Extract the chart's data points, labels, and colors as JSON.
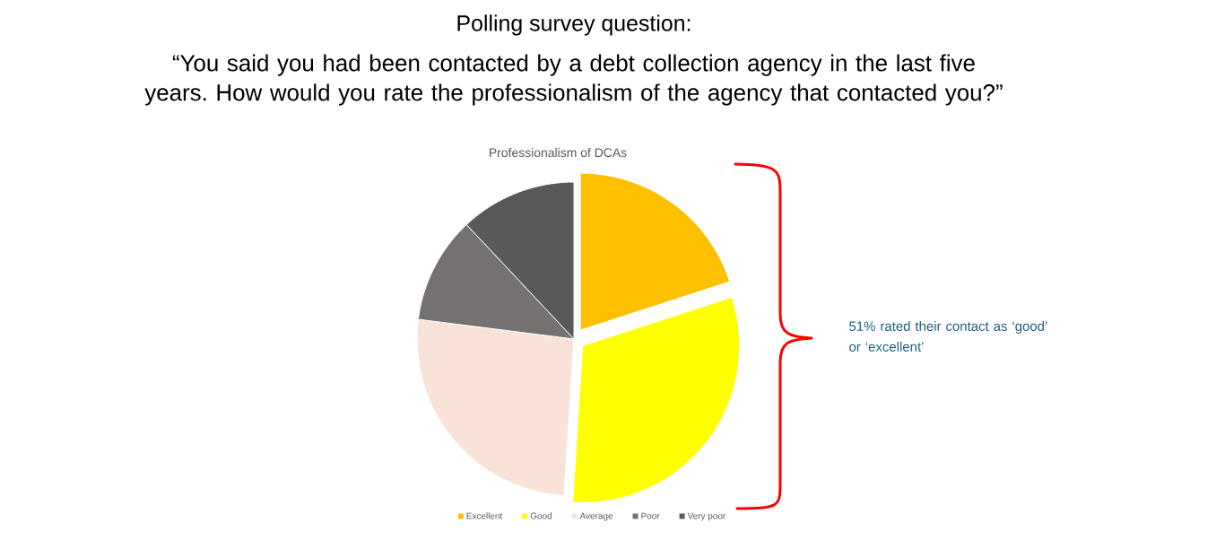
{
  "chart_data": {
    "type": "pie",
    "title": "Professionalism of DCAs",
    "categories": [
      "Excellent",
      "Good",
      "Average",
      "Poor",
      "Very poor"
    ],
    "values": [
      20,
      31,
      26,
      11,
      12
    ],
    "colors": [
      "#ffc000",
      "#ffff00",
      "#f9e3d9",
      "#767171",
      "#595959"
    ],
    "legend": "bottom",
    "annotations": [
      "Polling survey question:",
      "“You said you had been contacted by a debt collection agency in the last five years. How would you rate the professionalism of the agency that contacted you?”",
      "51% rated their contact as ‘good’ or ‘excellent’"
    ]
  }
}
